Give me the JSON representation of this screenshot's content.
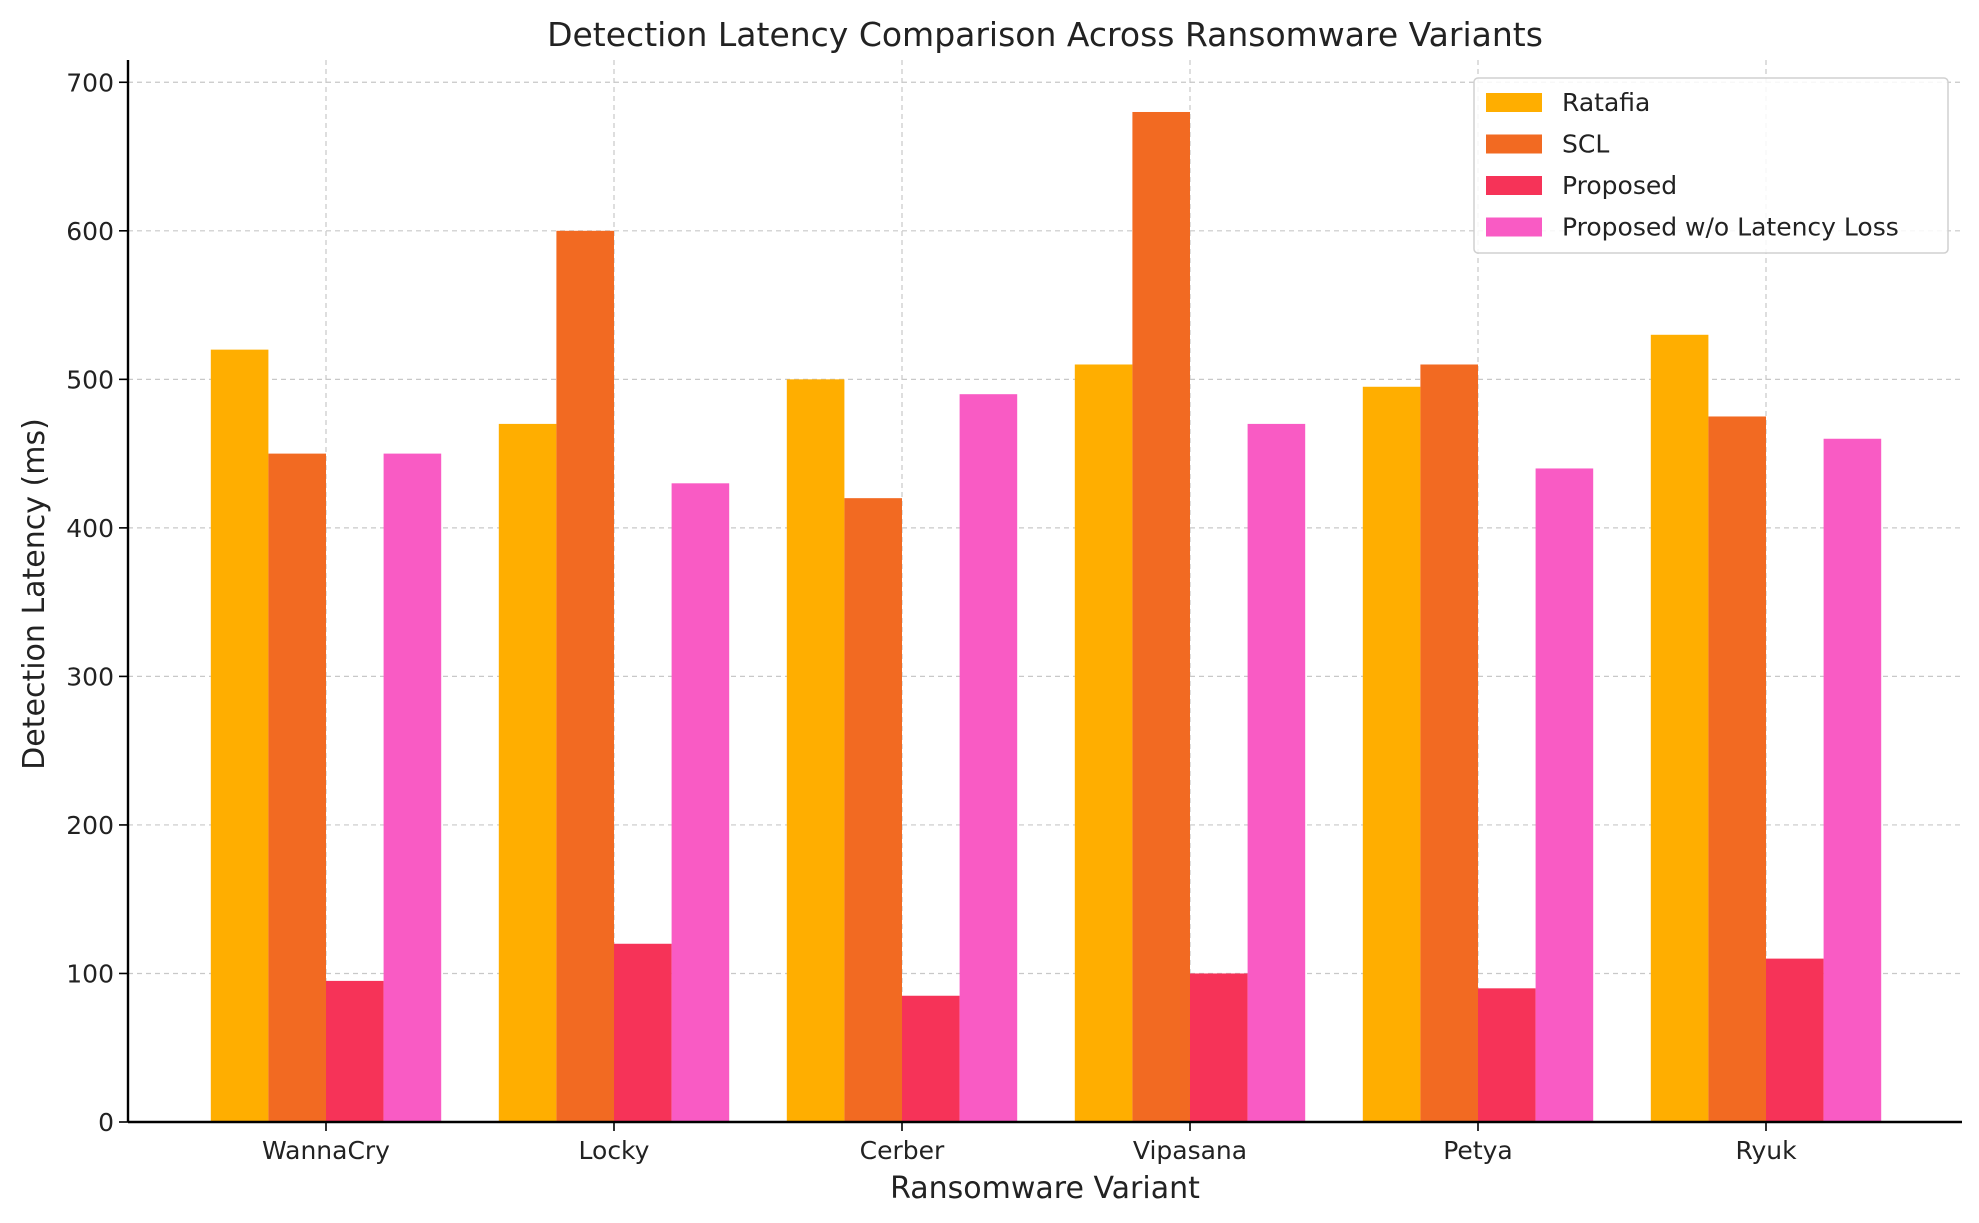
{
  "chart_data": {
    "type": "bar",
    "title": "Detection Latency Comparison Across Ransomware Variants",
    "xlabel": "Ransomware Variant",
    "ylabel": "Detection Latency (ms)",
    "ylim": [
      0,
      715
    ],
    "yticks": [
      "0",
      "100",
      "200",
      "300",
      "400",
      "500",
      "600",
      "700"
    ],
    "grid": true,
    "legend_position": "top-right",
    "categories": [
      "WannaCry",
      "Locky",
      "Cerber",
      "Vipasana",
      "Petya",
      "Ryuk"
    ],
    "series": [
      {
        "name": "Ratafia",
        "color": "#FFAE00",
        "values": [
          520,
          470,
          500,
          510,
          495,
          530
        ]
      },
      {
        "name": "SCL",
        "color": "#F26A22",
        "values": [
          450,
          600,
          420,
          680,
          510,
          475
        ]
      },
      {
        "name": "Proposed",
        "color": "#F63358",
        "values": [
          95,
          120,
          85,
          100,
          90,
          110
        ]
      },
      {
        "name": "Proposed w/o Latency Loss",
        "color": "#F95BC4",
        "values": [
          450,
          430,
          490,
          470,
          440,
          460
        ]
      }
    ]
  }
}
